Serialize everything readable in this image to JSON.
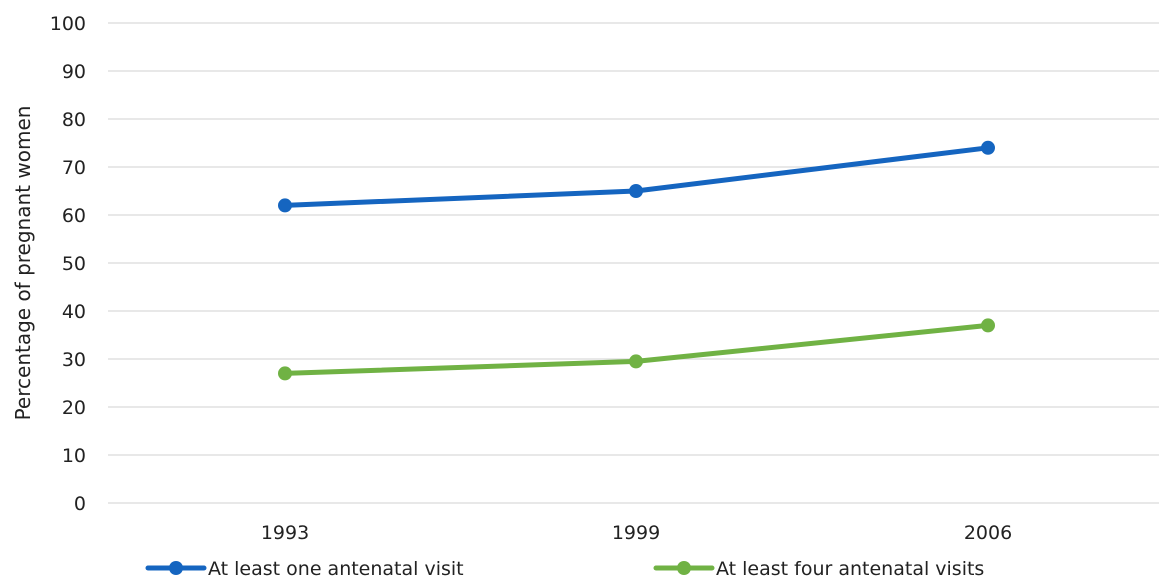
{
  "chart_data": {
    "type": "line",
    "x": [
      "1993",
      "1999",
      "2006"
    ],
    "ylabel": "Percentage of pregnant women",
    "xlabel": "",
    "ylim": [
      0,
      100
    ],
    "yticks": [
      0,
      10,
      20,
      30,
      40,
      50,
      60,
      70,
      80,
      90,
      100
    ],
    "grid": true,
    "legend_position": "bottom",
    "series": [
      {
        "name": "At least one antenatal visit",
        "color": "#1565C0",
        "values": [
          62,
          65,
          74
        ]
      },
      {
        "name": "At least four antenatal visits",
        "color": "#70B244",
        "values": [
          27,
          29.5,
          37
        ]
      }
    ]
  }
}
